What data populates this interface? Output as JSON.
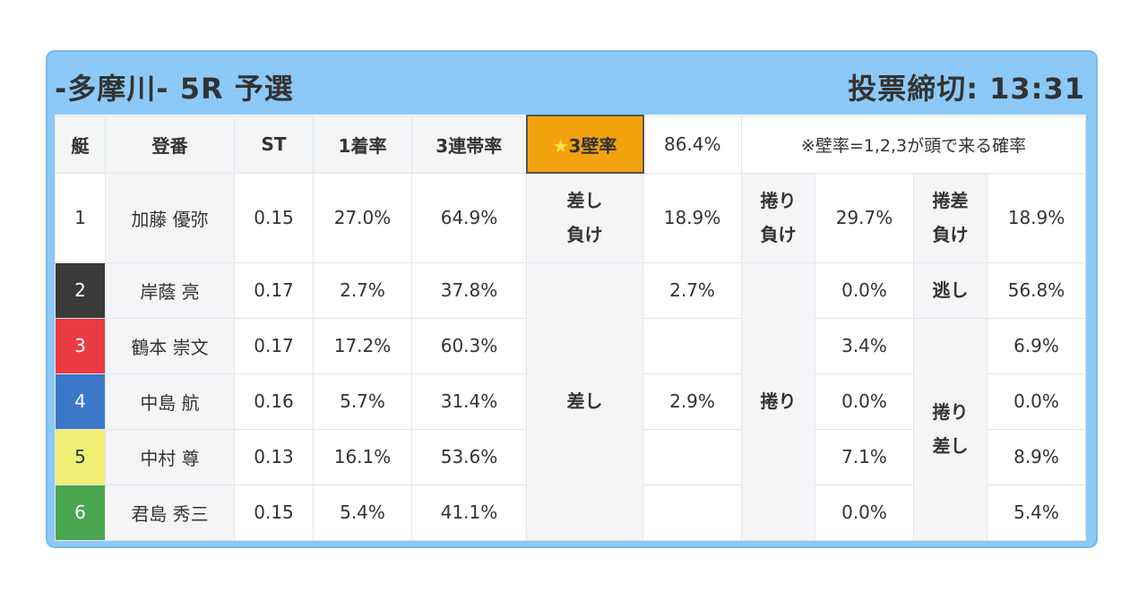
{
  "header": {
    "title": "-多摩川- 5R 予選",
    "deadline": "投票締切: 13:31"
  },
  "columns": {
    "lane": "艇",
    "name": "登番",
    "st": "ST",
    "win": "1着率",
    "top3": "3連帯率",
    "wall_star": "★",
    "wall_label": "3壁率",
    "wall_value": "86.4%",
    "wall_note": "※壁率=1,2,3が頭で来る確率"
  },
  "colors": {
    "lane1": "#ffffff",
    "lane2": "#3a3a3a",
    "lane3": "#ea3b42",
    "lane4": "#3d77c8",
    "lane5": "#f0ee74",
    "lane6": "#4aa64f",
    "accent": "#f3a20f",
    "frame": "#8cc9f6"
  },
  "racers": [
    {
      "lane": "1",
      "name": "加藤 優弥",
      "st": "0.15",
      "win": "27.0%",
      "top3": "64.9%"
    },
    {
      "lane": "2",
      "name": "岸蔭 亮",
      "st": "0.17",
      "win": "2.7%",
      "top3": "37.8%"
    },
    {
      "lane": "3",
      "name": "鶴本 崇文",
      "st": "0.17",
      "win": "17.2%",
      "top3": "60.3%"
    },
    {
      "lane": "4",
      "name": "中島 航",
      "st": "0.16",
      "win": "5.7%",
      "top3": "31.4%"
    },
    {
      "lane": "5",
      "name": "中村 尊",
      "st": "0.13",
      "win": "16.1%",
      "top3": "53.6%"
    },
    {
      "lane": "6",
      "name": "君島 秀三",
      "st": "0.15",
      "win": "5.4%",
      "top3": "41.1%"
    }
  ],
  "patterns": {
    "sashi_make_l1": "差し",
    "sashi_make_l2": "負け",
    "sashi_make_val": "18.9%",
    "makuri_make_l1": "捲り",
    "makuri_make_l2": "負け",
    "makuri_make_val": "29.7%",
    "makurisashi_make_l1": "捲差",
    "makurisashi_make_l2": "負け",
    "makurisashi_make_val": "18.9%",
    "sashi": "差し",
    "sashi_vals": [
      "2.7%",
      "",
      "2.9%",
      "",
      ""
    ],
    "makuri": "捲り",
    "makuri_vals": [
      "0.0%",
      "3.4%",
      "0.0%",
      "7.1%",
      "0.0%"
    ],
    "nige": "逃し",
    "nige_val": "56.8%",
    "makurisashi_l1": "捲り",
    "makurisashi_l2": "差し",
    "makurisashi_vals": [
      "6.9%",
      "0.0%",
      "8.9%",
      "5.4%"
    ]
  }
}
